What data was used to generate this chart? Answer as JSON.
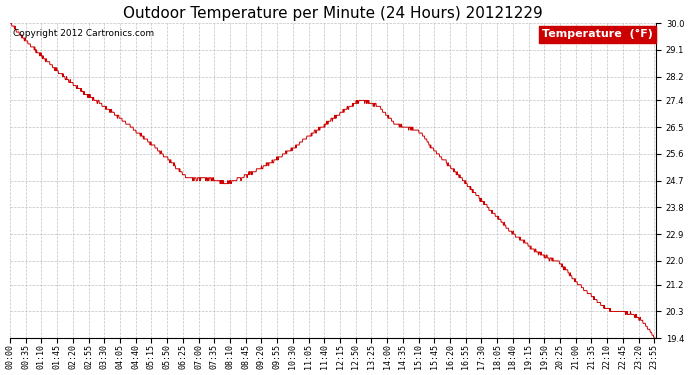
{
  "title": "Outdoor Temperature per Minute (24 Hours) 20121229",
  "copyright_text": "Copyright 2012 Cartronics.com",
  "legend_label": "Temperature  (°F)",
  "line_color": "#cc0000",
  "legend_bg": "#cc0000",
  "legend_text_color": "#ffffff",
  "background_color": "#ffffff",
  "grid_color": "#bbbbbb",
  "ylim": [
    19.4,
    30.0
  ],
  "yticks": [
    19.4,
    20.3,
    21.2,
    22.0,
    22.9,
    23.8,
    24.7,
    25.6,
    26.5,
    27.4,
    28.2,
    29.1,
    30.0
  ],
  "title_fontsize": 11,
  "axis_fontsize": 6.0,
  "tick_interval_minutes": 35
}
